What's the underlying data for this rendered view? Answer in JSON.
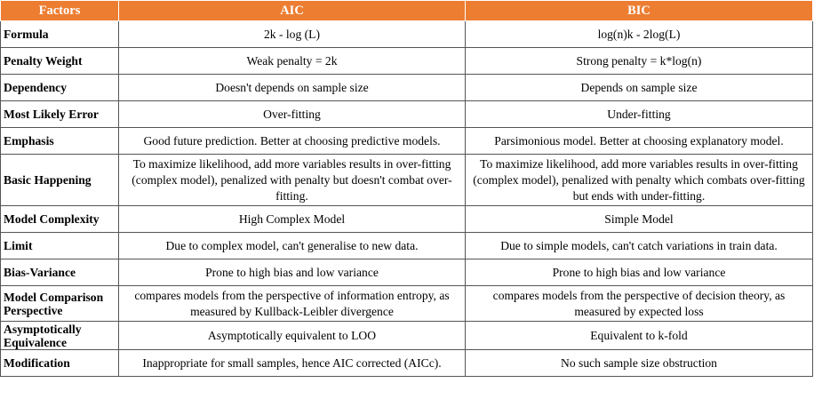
{
  "header": {
    "factors": "Factors",
    "aic": "AIC",
    "bic": "BIC"
  },
  "rows": [
    {
      "factor": "Formula",
      "aic": "2k - log (L)",
      "bic": "log(n)k - 2log(L)"
    },
    {
      "factor": "Penalty Weight",
      "aic": "Weak penalty = 2k",
      "bic": "Strong penalty = k*log(n)"
    },
    {
      "factor": "Dependency",
      "aic": "Doesn't depends on sample size",
      "bic": "Depends on sample size"
    },
    {
      "factor": "Most Likely Error",
      "aic": "Over-fitting",
      "bic": "Under-fitting"
    },
    {
      "factor": "Emphasis",
      "aic": "Good future prediction. Better at choosing predictive models.",
      "bic": "Parsimonious model. Better at choosing explanatory model."
    },
    {
      "factor": "Basic Happening",
      "aic": "To maximize likelihood, add more variables results in over-fitting (complex model), penalized with penalty but doesn't combat over-fitting.",
      "bic": "To maximize likelihood, add more variables results in over-fitting (complex model), penalized with penalty which combats over-fitting but ends with under-fitting."
    },
    {
      "factor": "Model Complexity",
      "aic": "High Complex Model",
      "bic": "Simple Model"
    },
    {
      "factor": "Limit",
      "aic": "Due to complex model, can't generalise to new data.",
      "bic": "Due to simple models, can't catch variations in train data."
    },
    {
      "factor": "Bias-Variance",
      "aic": "Prone to high bias and low variance",
      "bic": "Prone to high bias and low variance"
    },
    {
      "factor": "Model Comparison Perspective",
      "aic": "compares models from the perspective of information entropy, as measured by Kullback-Leibler divergence",
      "bic": "compares models from the perspective of decision theory, as measured by expected loss"
    },
    {
      "factor": "Asymptotically Equivalence",
      "aic": "Asymptotically equivalent to LOO",
      "bic": "Equivalent to k-fold"
    },
    {
      "factor": "Modification",
      "aic": "Inappropriate for small samples, hence AIC corrected (AICc).",
      "bic": "No such sample size obstruction"
    }
  ],
  "colors": {
    "header_bg": "#ed7d31",
    "header_text": "#ffffff",
    "border": "#555555"
  }
}
